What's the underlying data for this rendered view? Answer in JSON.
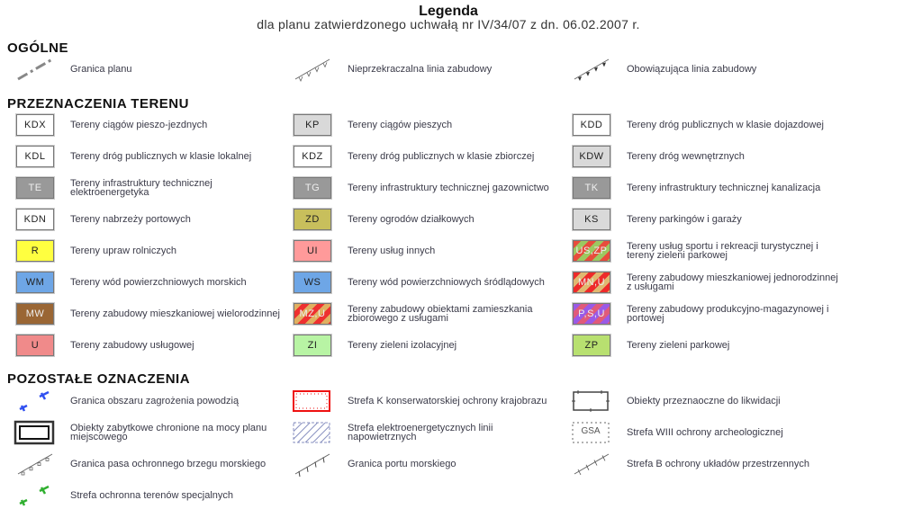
{
  "title": "Legenda",
  "subtitle": "dla planu zatwierdzonego uchwałą nr IV/34/07 z dn. 06.02.2007 r.",
  "sections": {
    "general": "OGÓLNE",
    "terrain": "PRZEZNACZENIA TERENU",
    "other": "POZOSTAŁE OZNACZENIA"
  },
  "general": [
    {
      "icon": "dash-dot-line-icon",
      "label": "Granica planu"
    },
    {
      "icon": "boundary-line-open-ticks-icon",
      "label": "Nieprzekraczalna linia zabudowy"
    },
    {
      "icon": "boundary-line-filled-ticks-icon",
      "label": "Obowiązująca linia zabudowy"
    }
  ],
  "terrain": [
    {
      "code": "KDX",
      "fill": "#ffffff",
      "label": "Tereny ciągów pieszo-jezdnych"
    },
    {
      "code": "KP",
      "fill": "#d9d9d9",
      "label": "Tereny ciągów pieszych"
    },
    {
      "code": "KDD",
      "fill": "#ffffff",
      "label": "Tereny dróg publicznych w klasie dojazdowej"
    },
    {
      "code": "KDL",
      "fill": "#ffffff",
      "label": "Tereny dróg publicznych w klasie lokalnej"
    },
    {
      "code": "KDZ",
      "fill": "#ffffff",
      "label": "Tereny dróg publicznych w klasie zbiorczej"
    },
    {
      "code": "KDW",
      "fill": "#d9d9d9",
      "label": "Tereny dróg wewnętrznych"
    },
    {
      "code": "TE",
      "fill": "#999999",
      "label": "Tereny infrastruktury technicznej elektroenergetyka"
    },
    {
      "code": "TG",
      "fill": "#999999",
      "label": "Tereny infrastruktury technicznej gazownictwo"
    },
    {
      "code": "TK",
      "fill": "#999999",
      "label": "Tereny infrastruktury technicznej kanalizacja"
    },
    {
      "code": "KDN",
      "fill": "#ffffff",
      "label": "Tereny nabrzeży portowych"
    },
    {
      "code": "ZD",
      "fill": "#c8bf5c",
      "label": "Tereny ogrodów działkowych"
    },
    {
      "code": "KS",
      "fill": "#d9d9d9",
      "label": "Tereny parkingów i garaży"
    },
    {
      "code": "R",
      "fill": "#ffff40",
      "label": "Tereny upraw rolniczych"
    },
    {
      "code": "UI",
      "fill": "#ff9a9a",
      "label": "Tereny usług innych"
    },
    {
      "code": "US,ZP",
      "fill": "#e84c3c",
      "stripe": "#9cc860",
      "label": "Tereny usług sportu i rekreacji turystycznej i tereny zieleni parkowej"
    },
    {
      "code": "WM",
      "fill": "#6ea6e6",
      "label": "Tereny wód powierzchniowych morskich"
    },
    {
      "code": "WS",
      "fill": "#6ea6e6",
      "label": "Tereny wód powierzchniowych śródlądowych"
    },
    {
      "code": "MN,U",
      "fill": "#ee2a2a",
      "stripe": "#e0b870",
      "label": "Tereny zabudowy mieszkaniowej jednorodzinnej z usługami"
    },
    {
      "code": "MW",
      "fill": "#9a6634",
      "label": "Tereny zabudowy mieszkaniowej wielorodzinnej"
    },
    {
      "code": "MZ,U",
      "fill": "#e0b060",
      "stripe": "#ee3030",
      "label": "Tereny zabudowy obiektami zamieszkania zbiorowego z usługami"
    },
    {
      "code": "P,S,U",
      "fill": "#9a5ae6",
      "stripe": "#e05a7a",
      "label": "Tereny zabudowy produkcyjno-magazynowej i portowej"
    },
    {
      "code": "U",
      "fill": "#f08a8a",
      "label": "Tereny zabudowy usługowej"
    },
    {
      "code": "ZI",
      "fill": "#b8f4a4",
      "label": "Tereny zieleni izolacyjnej"
    },
    {
      "code": "ZP",
      "fill": "#b8e070",
      "label": "Tereny zieleni parkowej"
    }
  ],
  "other": [
    {
      "icon": "blue-tick-line-icon",
      "color": "#3050f0",
      "label": "Granica obszaru zagrożenia powodzią"
    },
    {
      "icon": "red-dotted-box-icon",
      "color": "#ee1111",
      "label": "Strefa K konserwatorskiej ochrony krajobrazu"
    },
    {
      "icon": "marked-box-icon",
      "label": "Obiekty przeznaoczne do likwidacji"
    },
    {
      "icon": "double-box-icon",
      "label": "Obiekty zabytkowe chronione na mocy planu miejscowego"
    },
    {
      "icon": "hatched-box-icon",
      "color": "#8890c0",
      "label": "Strefa elektroenergetycznych linii napowietrznych"
    },
    {
      "icon": "gsa-box-icon",
      "code": "GSA",
      "label": "Strefa WIII ochrony archeologicznej"
    },
    {
      "icon": "coast-line-icon",
      "label": "Granica pasa ochronnego brzegu morskiego"
    },
    {
      "icon": "port-line-icon",
      "label": "Granica portu morskiego"
    },
    {
      "icon": "zone-b-line-icon",
      "label": "Strefa B ochrony układów przestrzennych"
    },
    {
      "icon": "green-tick-line-icon",
      "color": "#30b030",
      "label": "Strefa ochronna terenów specjalnych"
    }
  ]
}
